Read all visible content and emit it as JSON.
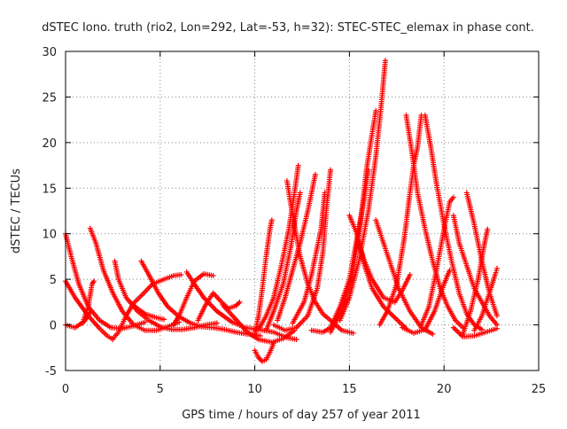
{
  "chart_data": {
    "type": "scatter",
    "title": "dSTEC Iono. truth (rio2, Lon=292, Lat=-53, h=32): STEC-STEC_elemax in phase cont.",
    "xlabel": "GPS time / hours of day 257 of year 2011",
    "ylabel": "dSTEC  / TECUs",
    "xlim": [
      0,
      25
    ],
    "ylim": [
      -5,
      30
    ],
    "xticks": [
      0,
      5,
      10,
      15,
      20,
      25
    ],
    "yticks": [
      -5,
      0,
      5,
      10,
      15,
      20,
      25,
      30
    ],
    "grid": true,
    "marker": "+",
    "color": "#ff0000",
    "series": [
      {
        "values": [
          [
            0.0,
            10.0
          ],
          [
            0.3,
            7.5
          ],
          [
            0.7,
            4.5
          ],
          [
            1.2,
            2.0
          ],
          [
            1.8,
            0.5
          ],
          [
            2.4,
            -0.3
          ],
          [
            3.0,
            -0.4
          ],
          [
            3.6,
            -0.1
          ],
          [
            4.2,
            0.3
          ]
        ]
      },
      {
        "values": [
          [
            0.0,
            4.8
          ],
          [
            0.5,
            3.0
          ],
          [
            1.2,
            1.0
          ],
          [
            1.8,
            -0.4
          ],
          [
            2.2,
            -1.2
          ],
          [
            2.5,
            -1.6
          ]
        ]
      },
      {
        "values": [
          [
            0.0,
            0.0
          ],
          [
            0.5,
            -0.3
          ],
          [
            1.0,
            0.4
          ],
          [
            1.3,
            1.4
          ]
        ]
      },
      {
        "values": [
          [
            0.9,
            0.2
          ],
          [
            1.2,
            2.0
          ],
          [
            1.4,
            4.5
          ],
          [
            1.5,
            4.8
          ]
        ]
      },
      {
        "values": [
          [
            1.3,
            10.6
          ],
          [
            1.6,
            9.0
          ],
          [
            2.0,
            6.0
          ],
          [
            2.5,
            3.5
          ],
          [
            3.0,
            1.5
          ],
          [
            3.6,
            0.0
          ],
          [
            4.2,
            -0.6
          ],
          [
            4.8,
            -0.6
          ],
          [
            5.4,
            -0.2
          ],
          [
            6.0,
            0.3
          ]
        ]
      },
      {
        "values": [
          [
            2.5,
            -1.5
          ],
          [
            2.8,
            -0.8
          ],
          [
            3.2,
            1.0
          ],
          [
            3.6,
            2.4
          ],
          [
            4.0,
            3.2
          ],
          [
            4.6,
            4.5
          ],
          [
            5.2,
            5.0
          ],
          [
            5.7,
            5.4
          ],
          [
            6.1,
            5.5
          ]
        ]
      },
      {
        "values": [
          [
            2.6,
            7.0
          ],
          [
            2.8,
            5.0
          ],
          [
            3.2,
            3.0
          ],
          [
            3.8,
            1.5
          ],
          [
            4.4,
            0.5
          ],
          [
            5.0,
            -0.2
          ],
          [
            5.6,
            -0.5
          ],
          [
            6.2,
            -0.5
          ],
          [
            6.8,
            -0.3
          ],
          [
            7.4,
            0.0
          ],
          [
            8.0,
            0.2
          ]
        ]
      },
      {
        "values": [
          [
            3.4,
            2.5
          ],
          [
            3.8,
            1.8
          ],
          [
            4.2,
            1.2
          ],
          [
            4.8,
            0.8
          ],
          [
            5.2,
            0.6
          ]
        ]
      },
      {
        "values": [
          [
            4.0,
            7.0
          ],
          [
            4.4,
            5.5
          ],
          [
            4.9,
            3.5
          ],
          [
            5.4,
            2.0
          ],
          [
            6.0,
            0.9
          ],
          [
            6.6,
            0.2
          ],
          [
            7.2,
            -0.2
          ],
          [
            7.8,
            -0.3
          ],
          [
            8.4,
            -0.5
          ],
          [
            9.0,
            -0.8
          ],
          [
            9.6,
            -1.0
          ],
          [
            10.3,
            -1.2
          ]
        ]
      },
      {
        "values": [
          [
            5.7,
            0.0
          ],
          [
            6.0,
            1.0
          ],
          [
            6.4,
            3.0
          ],
          [
            6.8,
            4.8
          ],
          [
            7.3,
            5.6
          ],
          [
            7.8,
            5.4
          ]
        ]
      },
      {
        "values": [
          [
            6.4,
            5.8
          ],
          [
            6.8,
            4.5
          ],
          [
            7.3,
            3.0
          ],
          [
            8.0,
            1.5
          ],
          [
            8.8,
            0.3
          ],
          [
            9.5,
            -0.3
          ],
          [
            10.2,
            -0.5
          ],
          [
            11.0,
            -0.8
          ],
          [
            11.7,
            -1.4
          ],
          [
            12.2,
            -1.6
          ]
        ]
      },
      {
        "values": [
          [
            7.0,
            0.5
          ],
          [
            7.4,
            2.2
          ],
          [
            7.8,
            3.5
          ],
          [
            8.2,
            2.6
          ],
          [
            8.6,
            1.8
          ],
          [
            9.0,
            2.1
          ],
          [
            9.2,
            2.5
          ]
        ]
      },
      {
        "values": [
          [
            10.0,
            -2.8
          ],
          [
            10.2,
            -3.6
          ],
          [
            10.4,
            -4.0
          ],
          [
            10.6,
            -3.8
          ],
          [
            10.8,
            -3.0
          ],
          [
            11.0,
            -2.0
          ]
        ]
      },
      {
        "values": [
          [
            10.0,
            -1.0
          ],
          [
            10.2,
            1.0
          ],
          [
            10.4,
            4.0
          ],
          [
            10.6,
            7.5
          ],
          [
            10.8,
            10.5
          ],
          [
            10.9,
            11.5
          ]
        ]
      },
      {
        "values": [
          [
            10.2,
            -0.5
          ],
          [
            10.6,
            1.0
          ],
          [
            11.0,
            3.0
          ],
          [
            11.4,
            6.5
          ],
          [
            11.8,
            10.5
          ],
          [
            12.1,
            14.5
          ],
          [
            12.3,
            17.5
          ]
        ]
      },
      {
        "values": [
          [
            10.6,
            -0.6
          ],
          [
            11.0,
            1.5
          ],
          [
            11.5,
            4.5
          ],
          [
            11.9,
            8.5
          ],
          [
            12.2,
            12.5
          ],
          [
            12.4,
            14.5
          ]
        ]
      },
      {
        "values": [
          [
            11.2,
            0.5
          ],
          [
            11.6,
            3.0
          ],
          [
            12.0,
            6.0
          ],
          [
            12.4,
            9.0
          ],
          [
            12.8,
            12.5
          ],
          [
            13.2,
            16.5
          ]
        ]
      },
      {
        "values": [
          [
            11.0,
            0.0
          ],
          [
            11.6,
            -0.6
          ],
          [
            12.2,
            -0.3
          ],
          [
            12.8,
            1.0
          ],
          [
            13.3,
            4.0
          ],
          [
            13.6,
            8.0
          ],
          [
            13.8,
            13.0
          ],
          [
            14.0,
            17.0
          ]
        ]
      },
      {
        "values": [
          [
            12.0,
            0.2
          ],
          [
            12.6,
            2.5
          ],
          [
            13.0,
            5.5
          ],
          [
            13.5,
            10.5
          ],
          [
            13.7,
            14.5
          ]
        ]
      },
      {
        "values": [
          [
            11.7,
            15.8
          ],
          [
            12.0,
            12.0
          ],
          [
            12.4,
            7.5
          ],
          [
            12.8,
            4.5
          ],
          [
            13.2,
            2.5
          ],
          [
            13.6,
            1.2
          ],
          [
            14.0,
            0.5
          ],
          [
            14.6,
            -0.6
          ],
          [
            15.2,
            -0.9
          ]
        ]
      },
      {
        "values": [
          [
            13.0,
            -0.6
          ],
          [
            13.6,
            -0.8
          ],
          [
            14.0,
            -0.3
          ],
          [
            14.5,
            2.0
          ],
          [
            15.0,
            5.0
          ],
          [
            15.4,
            9.5
          ],
          [
            15.8,
            14.0
          ],
          [
            16.0,
            17.0
          ]
        ]
      },
      {
        "values": [
          [
            14.0,
            -0.8
          ],
          [
            14.6,
            1.5
          ],
          [
            15.2,
            6.0
          ],
          [
            15.6,
            11.5
          ],
          [
            15.9,
            17.0
          ],
          [
            16.2,
            21.0
          ],
          [
            16.4,
            23.5
          ]
        ]
      },
      {
        "values": [
          [
            14.5,
            0.5
          ],
          [
            15.0,
            3.0
          ],
          [
            15.5,
            7.0
          ],
          [
            16.0,
            12.5
          ],
          [
            16.4,
            18.5
          ],
          [
            16.7,
            24.5
          ],
          [
            16.9,
            29.0
          ]
        ]
      },
      {
        "values": [
          [
            15.0,
            12.0
          ],
          [
            15.4,
            10.0
          ],
          [
            15.8,
            6.5
          ],
          [
            16.2,
            4.0
          ],
          [
            16.8,
            2.0
          ],
          [
            17.4,
            0.8
          ],
          [
            18.0,
            -0.4
          ]
        ]
      },
      {
        "values": [
          [
            15.4,
            9.5
          ],
          [
            15.8,
            7.0
          ],
          [
            16.2,
            5.0
          ],
          [
            16.8,
            3.0
          ],
          [
            17.4,
            2.5
          ],
          [
            17.8,
            3.8
          ],
          [
            18.2,
            5.5
          ]
        ]
      },
      {
        "values": [
          [
            16.4,
            11.5
          ],
          [
            16.8,
            9.0
          ],
          [
            17.2,
            6.5
          ],
          [
            17.6,
            4.0
          ],
          [
            18.2,
            1.5
          ],
          [
            18.8,
            -0.3
          ],
          [
            19.4,
            -1.0
          ]
        ]
      },
      {
        "values": [
          [
            16.6,
            0.0
          ],
          [
            17.0,
            1.5
          ],
          [
            17.5,
            4.5
          ],
          [
            17.9,
            9.5
          ],
          [
            18.2,
            14.5
          ],
          [
            18.4,
            17.5
          ],
          [
            18.6,
            19.5
          ],
          [
            18.8,
            23.0
          ]
        ]
      },
      {
        "values": [
          [
            18.0,
            23.0
          ],
          [
            18.3,
            19.0
          ],
          [
            18.6,
            14.5
          ],
          [
            19.0,
            10.5
          ],
          [
            19.4,
            7.0
          ],
          [
            19.8,
            4.0
          ],
          [
            20.2,
            2.0
          ],
          [
            20.6,
            0.5
          ],
          [
            21.0,
            -0.3
          ]
        ]
      },
      {
        "values": [
          [
            18.8,
            0.0
          ],
          [
            19.2,
            2.0
          ],
          [
            19.6,
            6.0
          ],
          [
            20.0,
            10.5
          ],
          [
            20.3,
            13.5
          ],
          [
            20.5,
            14.0
          ]
        ]
      },
      {
        "values": [
          [
            19.0,
            23.0
          ],
          [
            19.3,
            19.5
          ],
          [
            19.6,
            15.5
          ],
          [
            20.0,
            11.0
          ],
          [
            20.4,
            7.0
          ],
          [
            20.8,
            3.5
          ],
          [
            21.2,
            1.2
          ],
          [
            21.6,
            0.0
          ],
          [
            22.0,
            -0.5
          ]
        ]
      },
      {
        "values": [
          [
            17.8,
            -0.3
          ],
          [
            18.4,
            -0.9
          ],
          [
            19.0,
            -0.5
          ],
          [
            19.5,
            1.5
          ],
          [
            20.0,
            4.5
          ],
          [
            20.3,
            6.0
          ]
        ]
      },
      {
        "values": [
          [
            20.5,
            12.0
          ],
          [
            20.8,
            9.0
          ],
          [
            21.2,
            6.5
          ],
          [
            21.6,
            4.0
          ],
          [
            22.0,
            2.5
          ],
          [
            22.4,
            1.0
          ],
          [
            22.8,
            0.0
          ]
        ]
      },
      {
        "values": [
          [
            21.0,
            -1.0
          ],
          [
            21.4,
            1.5
          ],
          [
            21.8,
            5.0
          ],
          [
            22.1,
            8.5
          ],
          [
            22.3,
            10.5
          ]
        ]
      },
      {
        "values": [
          [
            21.2,
            14.5
          ],
          [
            21.6,
            11.0
          ],
          [
            22.0,
            7.0
          ],
          [
            22.4,
            3.5
          ],
          [
            22.8,
            1.0
          ]
        ]
      },
      {
        "values": [
          [
            20.5,
            -0.3
          ],
          [
            21.0,
            -1.3
          ],
          [
            21.6,
            -1.2
          ],
          [
            22.2,
            -0.8
          ],
          [
            22.8,
            -0.4
          ]
        ]
      },
      {
        "values": [
          [
            21.6,
            -0.6
          ],
          [
            22.0,
            1.0
          ],
          [
            22.4,
            3.5
          ],
          [
            22.7,
            5.5
          ],
          [
            22.8,
            6.2
          ]
        ]
      },
      {
        "values": [
          [
            8.3,
            2.2
          ],
          [
            9.0,
            0.6
          ],
          [
            9.6,
            -0.8
          ],
          [
            10.2,
            -1.6
          ],
          [
            10.9,
            -1.9
          ],
          [
            11.5,
            -1.5
          ],
          [
            12.1,
            -0.6
          ]
        ]
      }
    ]
  }
}
